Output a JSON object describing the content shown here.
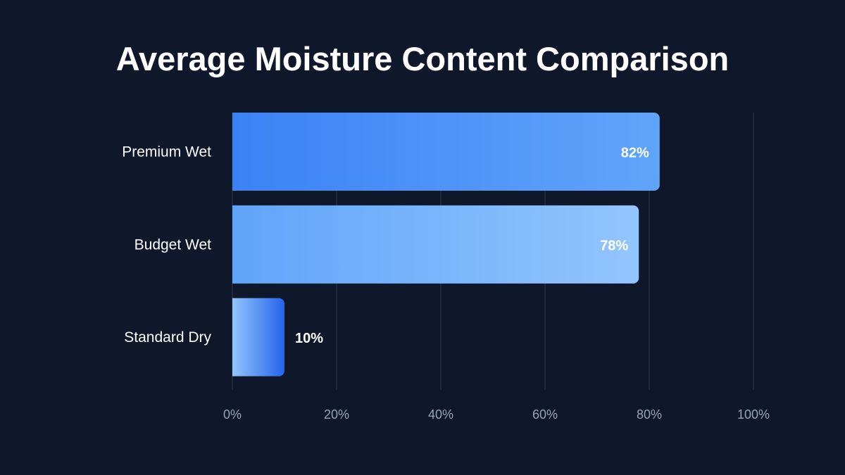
{
  "chart_data": {
    "type": "bar",
    "orientation": "horizontal",
    "title": "Average Moisture Content Comparison",
    "categories": [
      "Premium Wet",
      "Budget Wet",
      "Standard Dry"
    ],
    "values": [
      82,
      78,
      10
    ],
    "value_labels": [
      "82%",
      "78%",
      "10%"
    ],
    "xlim": [
      0,
      100
    ],
    "xticks": [
      0,
      20,
      40,
      60,
      80,
      100
    ],
    "xtick_labels": [
      "0%",
      "20%",
      "40%",
      "60%",
      "80%",
      "100%"
    ],
    "xlabel": "",
    "ylabel": "",
    "grid": true,
    "colors": [
      [
        "#3b82f6",
        "#60a5fa"
      ],
      [
        "#60a5fa",
        "#93c5fd"
      ],
      [
        "#93c5fd",
        "#2563eb"
      ]
    ]
  }
}
